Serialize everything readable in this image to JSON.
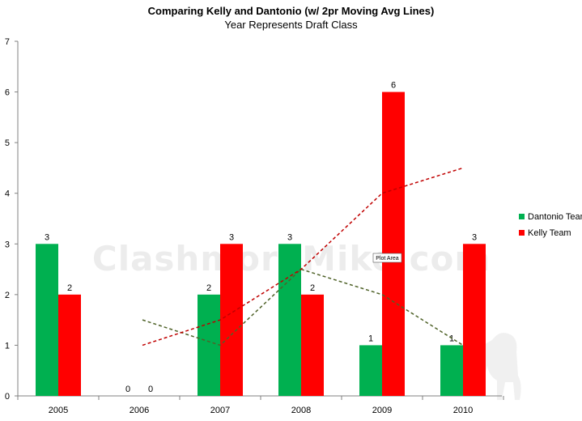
{
  "chart_data": {
    "type": "bar",
    "title": "Comparing Kelly and Dantonio (w/ 2pr Moving Avg Lines)",
    "subtitle": "Year Represents Draft Class",
    "categories": [
      "2005",
      "2006",
      "2007",
      "2008",
      "2009",
      "2010"
    ],
    "series": [
      {
        "name": "Dantonio Team",
        "color": "#00b050",
        "values": [
          3,
          0,
          2,
          3,
          1,
          1
        ],
        "labels": [
          "3",
          "0",
          "2",
          "3",
          "1",
          "1"
        ]
      },
      {
        "name": "Kelly Team",
        "color": "#ff0000",
        "values": [
          2,
          0,
          3,
          2,
          6,
          3
        ],
        "labels": [
          "2",
          "0",
          "3",
          "2",
          "6",
          "3"
        ]
      }
    ],
    "moving_averages": [
      {
        "of_series": "Dantonio Team",
        "period": 2,
        "color": "#4f6228",
        "style": "dashed",
        "values": [
          null,
          1.5,
          1,
          2.5,
          2,
          1
        ]
      },
      {
        "of_series": "Kelly Team",
        "period": 2,
        "color": "#c00000",
        "style": "dashed",
        "values": [
          null,
          1,
          1.5,
          2.5,
          4,
          4.5
        ]
      }
    ],
    "ylim": [
      0,
      7
    ],
    "yticks": [
      "0",
      "1",
      "2",
      "3",
      "4",
      "5",
      "6",
      "7"
    ],
    "xlabel": "",
    "ylabel": "",
    "grid": false,
    "legend_position": "right",
    "watermark": "ClashmoreMike.com",
    "tooltip": "Plot Area"
  }
}
